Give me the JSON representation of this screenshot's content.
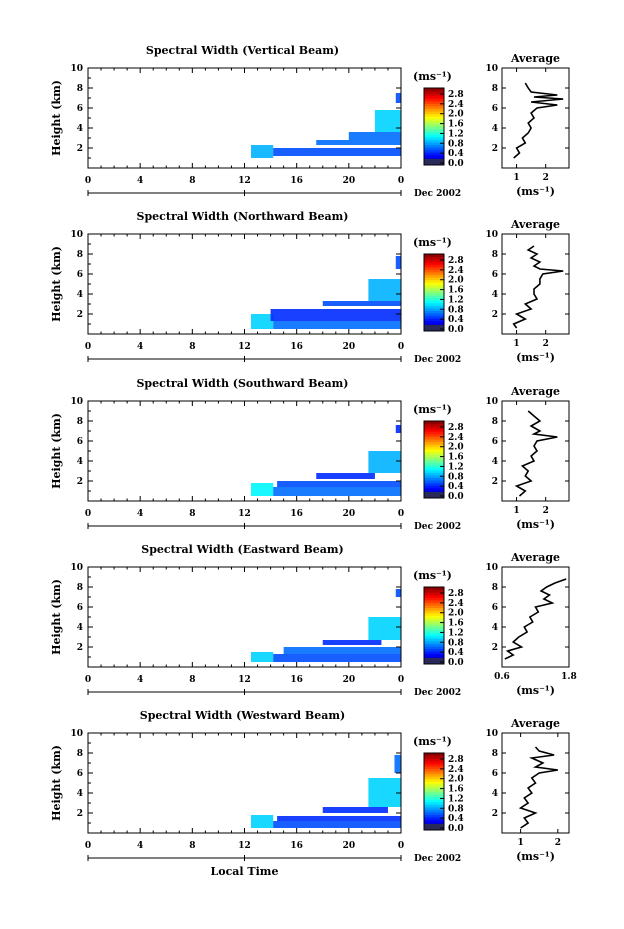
{
  "chart_data": [
    {
      "type": "heatmap",
      "title": "Spectral Width (Vertical Beam)",
      "ylabel": "Height (km)",
      "xticks": [
        "0",
        "4",
        "8",
        "12",
        "16",
        "20",
        "0"
      ],
      "yticks": [
        "2",
        "4",
        "6",
        "8",
        "10"
      ],
      "xlim": [
        0,
        24
      ],
      "ylim": [
        0,
        10
      ],
      "date_label": "Dec 2002",
      "colorbar": {
        "unit": "(ms⁻¹)",
        "ticks": [
          "2.8",
          "2.4",
          "2.0",
          "1.6",
          "1.2",
          "0.8",
          "0.4",
          "0.0"
        ],
        "range": [
          0,
          3.0
        ]
      },
      "cells": [
        {
          "t": [
            12.5,
            14.2
          ],
          "h": [
            1.0,
            2.3
          ],
          "v": 0.9
        },
        {
          "t": [
            14.2,
            24.0
          ],
          "h": [
            1.2,
            2.0
          ],
          "v": 0.6
        },
        {
          "t": [
            17.5,
            24.0
          ],
          "h": [
            2.3,
            2.8
          ],
          "v": 0.7
        },
        {
          "t": [
            20.0,
            24.0
          ],
          "h": [
            2.8,
            3.6
          ],
          "v": 0.7
        },
        {
          "t": [
            22.0,
            24.0
          ],
          "h": [
            3.6,
            5.8
          ],
          "v": 1.0
        },
        {
          "t": [
            23.6,
            24.0
          ],
          "h": [
            6.5,
            7.5
          ],
          "v": 0.6
        }
      ],
      "average": {
        "title": "Average",
        "xlabel": "(ms⁻¹)",
        "xticks": [
          "1",
          "2"
        ],
        "xlim": [
          0.5,
          2.8
        ],
        "yticks": [
          "2",
          "4",
          "6",
          "8",
          "10"
        ],
        "height_km": [
          1.0,
          1.5,
          2.0,
          2.5,
          3.0,
          3.5,
          4.0,
          4.5,
          5.0,
          5.5,
          6.0,
          6.3,
          6.6,
          6.9,
          7.1,
          7.3,
          7.6,
          8.0,
          8.5
        ],
        "width": [
          0.9,
          1.1,
          1.0,
          1.3,
          1.2,
          1.4,
          1.5,
          1.4,
          1.6,
          1.5,
          1.7,
          2.4,
          1.5,
          2.6,
          1.6,
          2.4,
          1.5,
          1.4,
          1.3
        ]
      }
    },
    {
      "type": "heatmap",
      "title": "Spectral Width (Northward Beam)",
      "ylabel": "Height (km)",
      "xticks": [
        "0",
        "4",
        "8",
        "12",
        "16",
        "20",
        "0"
      ],
      "yticks": [
        "2",
        "4",
        "6",
        "8",
        "10"
      ],
      "xlim": [
        0,
        24
      ],
      "ylim": [
        0,
        10
      ],
      "date_label": "Dec 2002",
      "colorbar": {
        "unit": "(ms⁻¹)",
        "ticks": [
          "2.8",
          "2.4",
          "2.0",
          "1.6",
          "1.2",
          "0.8",
          "0.4",
          "0.0"
        ],
        "range": [
          0,
          3.0
        ]
      },
      "cells": [
        {
          "t": [
            12.5,
            14.2
          ],
          "h": [
            0.5,
            2.0
          ],
          "v": 1.0
        },
        {
          "t": [
            14.2,
            24.0
          ],
          "h": [
            0.5,
            1.3
          ],
          "v": 0.7
        },
        {
          "t": [
            14.0,
            24.0
          ],
          "h": [
            1.3,
            2.5
          ],
          "v": 0.5
        },
        {
          "t": [
            18.0,
            24.0
          ],
          "h": [
            2.8,
            3.3
          ],
          "v": 0.6
        },
        {
          "t": [
            21.5,
            24.0
          ],
          "h": [
            3.3,
            5.5
          ],
          "v": 0.9
        },
        {
          "t": [
            23.6,
            24.0
          ],
          "h": [
            6.5,
            7.8
          ],
          "v": 0.6
        }
      ],
      "average": {
        "title": "Average",
        "xlabel": "(ms⁻¹)",
        "xticks": [
          "1",
          "2"
        ],
        "xlim": [
          0.5,
          2.8
        ],
        "yticks": [
          "2",
          "4",
          "6",
          "8",
          "10"
        ],
        "height_km": [
          0.6,
          1.0,
          1.5,
          2.0,
          2.5,
          3.0,
          3.5,
          4.0,
          4.5,
          5.0,
          5.5,
          6.0,
          6.3,
          6.5,
          6.8,
          7.2,
          7.6,
          8.0,
          8.4,
          8.8
        ],
        "width": [
          1.0,
          0.9,
          1.3,
          1.0,
          1.5,
          1.3,
          1.7,
          1.6,
          1.6,
          1.8,
          1.8,
          1.9,
          2.6,
          1.8,
          1.6,
          1.8,
          1.5,
          1.7,
          1.4,
          1.6
        ]
      }
    },
    {
      "type": "heatmap",
      "title": "Spectral Width (Southward Beam)",
      "ylabel": "Height (km)",
      "xticks": [
        "0",
        "4",
        "8",
        "12",
        "16",
        "20",
        "0"
      ],
      "yticks": [
        "2",
        "4",
        "6",
        "8",
        "10"
      ],
      "xlim": [
        0,
        24
      ],
      "ylim": [
        0,
        10
      ],
      "date_label": "Dec 2002",
      "colorbar": {
        "unit": "(ms⁻¹)",
        "ticks": [
          "2.8",
          "2.4",
          "2.0",
          "1.6",
          "1.2",
          "0.8",
          "0.4",
          "0.0"
        ],
        "range": [
          0,
          3.0
        ]
      },
      "cells": [
        {
          "t": [
            12.5,
            14.2
          ],
          "h": [
            0.5,
            1.8
          ],
          "v": 1.1
        },
        {
          "t": [
            14.2,
            24.0
          ],
          "h": [
            0.5,
            1.4
          ],
          "v": 0.7
        },
        {
          "t": [
            14.5,
            24.0
          ],
          "h": [
            1.4,
            2.0
          ],
          "v": 0.6
        },
        {
          "t": [
            17.5,
            22.0
          ],
          "h": [
            2.2,
            2.8
          ],
          "v": 0.5
        },
        {
          "t": [
            21.5,
            24.0
          ],
          "h": [
            2.8,
            5.0
          ],
          "v": 0.9
        },
        {
          "t": [
            23.6,
            24.0
          ],
          "h": [
            6.8,
            7.6
          ],
          "v": 0.5
        }
      ],
      "average": {
        "title": "Average",
        "xlabel": "(ms⁻¹)",
        "xticks": [
          "1",
          "2"
        ],
        "xlim": [
          0.5,
          2.8
        ],
        "yticks": [
          "2",
          "4",
          "6",
          "8",
          "10"
        ],
        "height_km": [
          0.5,
          1.0,
          1.5,
          2.0,
          2.5,
          3.0,
          3.5,
          4.0,
          4.5,
          5.0,
          5.5,
          6.0,
          6.4,
          6.7,
          7.0,
          7.5,
          8.0,
          8.5,
          9.0
        ],
        "width": [
          1.1,
          1.3,
          1.0,
          1.5,
          1.3,
          1.4,
          1.2,
          1.6,
          1.5,
          1.7,
          1.6,
          1.7,
          2.4,
          1.6,
          1.8,
          1.5,
          1.8,
          1.6,
          1.4
        ]
      }
    },
    {
      "type": "heatmap",
      "title": "Spectral Width (Eastward Beam)",
      "ylabel": "Height (km)",
      "xticks": [
        "0",
        "4",
        "8",
        "12",
        "16",
        "20",
        "0"
      ],
      "yticks": [
        "2",
        "4",
        "6",
        "8",
        "10"
      ],
      "xlim": [
        0,
        24
      ],
      "ylim": [
        0,
        10
      ],
      "date_label": "Dec 2002",
      "colorbar": {
        "unit": "(ms⁻¹)",
        "ticks": [
          "2.8",
          "2.4",
          "2.0",
          "1.6",
          "1.2",
          "0.8",
          "0.4",
          "0.0"
        ],
        "range": [
          0,
          3.0
        ]
      },
      "cells": [
        {
          "t": [
            12.5,
            14.2
          ],
          "h": [
            0.5,
            1.5
          ],
          "v": 1.0
        },
        {
          "t": [
            14.2,
            24.0
          ],
          "h": [
            0.5,
            1.3
          ],
          "v": 0.6
        },
        {
          "t": [
            15.0,
            24.0
          ],
          "h": [
            1.3,
            2.0
          ],
          "v": 0.7
        },
        {
          "t": [
            18.0,
            22.5
          ],
          "h": [
            2.2,
            2.7
          ],
          "v": 0.5
        },
        {
          "t": [
            21.5,
            24.0
          ],
          "h": [
            2.7,
            5.0
          ],
          "v": 1.0
        },
        {
          "t": [
            23.6,
            24.0
          ],
          "h": [
            7.0,
            7.8
          ],
          "v": 0.6
        }
      ],
      "average": {
        "title": "Average",
        "xlabel": "(ms⁻¹)",
        "xticks": [
          "0.6",
          "1.8"
        ],
        "xlim": [
          0.6,
          1.8
        ],
        "yticks": [
          "2",
          "4",
          "6",
          "8",
          "10"
        ],
        "height_km": [
          0.8,
          1.2,
          1.6,
          2.0,
          2.5,
          3.0,
          3.5,
          4.0,
          4.5,
          5.0,
          5.5,
          6.0,
          6.4,
          6.8,
          7.2,
          7.6,
          8.0,
          8.4,
          8.8
        ],
        "width": [
          0.65,
          0.8,
          0.7,
          0.95,
          0.8,
          0.9,
          1.05,
          1.0,
          1.15,
          1.1,
          1.25,
          1.2,
          1.5,
          1.35,
          1.45,
          1.3,
          1.4,
          1.55,
          1.75
        ]
      }
    },
    {
      "type": "heatmap",
      "title": "Spectral Width (Westward Beam)",
      "ylabel": "Height (km)",
      "xticks": [
        "0",
        "4",
        "8",
        "12",
        "16",
        "20",
        "0"
      ],
      "yticks": [
        "2",
        "4",
        "6",
        "8",
        "10"
      ],
      "xlim": [
        0,
        24
      ],
      "ylim": [
        0,
        10
      ],
      "date_label": "Dec 2002",
      "xlabel": "Local Time",
      "colorbar": {
        "unit": "(ms⁻¹)",
        "ticks": [
          "2.8",
          "2.4",
          "2.0",
          "1.6",
          "1.2",
          "0.8",
          "0.4",
          "0.0"
        ],
        "range": [
          0,
          3.0
        ]
      },
      "cells": [
        {
          "t": [
            12.5,
            14.2
          ],
          "h": [
            0.5,
            1.8
          ],
          "v": 1.0
        },
        {
          "t": [
            14.2,
            24.0
          ],
          "h": [
            0.5,
            1.2
          ],
          "v": 0.6
        },
        {
          "t": [
            14.5,
            24.0
          ],
          "h": [
            1.2,
            1.7
          ],
          "v": 0.5
        },
        {
          "t": [
            18.0,
            23.0
          ],
          "h": [
            2.0,
            2.6
          ],
          "v": 0.5
        },
        {
          "t": [
            21.5,
            24.0
          ],
          "h": [
            2.6,
            5.5
          ],
          "v": 1.0
        },
        {
          "t": [
            23.5,
            24.0
          ],
          "h": [
            6.0,
            7.8
          ],
          "v": 0.7
        }
      ],
      "average": {
        "title": "Average",
        "xlabel": "(ms⁻¹)",
        "xticks": [
          "1",
          "2"
        ],
        "xlim": [
          0.5,
          2.3
        ],
        "yticks": [
          "2",
          "4",
          "6",
          "8",
          "10"
        ],
        "height_km": [
          0.5,
          1.0,
          1.5,
          2.0,
          2.5,
          3.0,
          3.5,
          4.0,
          4.5,
          5.0,
          5.5,
          6.0,
          6.3,
          6.6,
          7.0,
          7.5,
          7.8,
          8.2,
          8.6
        ],
        "width": [
          1.0,
          1.2,
          1.1,
          1.4,
          1.0,
          1.2,
          1.1,
          1.3,
          1.2,
          1.4,
          1.3,
          1.5,
          2.0,
          1.4,
          1.6,
          1.3,
          1.9,
          1.5,
          1.4
        ]
      }
    }
  ]
}
